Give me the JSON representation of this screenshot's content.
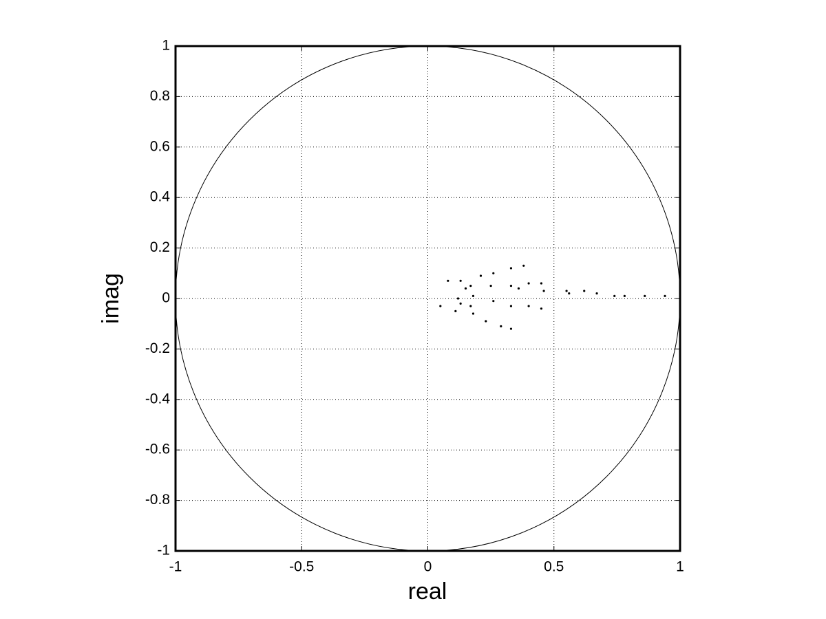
{
  "chart_data": {
    "type": "scatter",
    "x_label": "real",
    "y_label": "imag",
    "xlim": [
      -1,
      1
    ],
    "ylim": [
      -1,
      1
    ],
    "xticks": [
      -1,
      -0.5,
      0,
      0.5,
      1
    ],
    "yticks": [
      -1,
      -0.8,
      -0.6,
      -0.4,
      -0.2,
      0,
      0.2,
      0.4,
      0.6,
      0.8,
      1
    ],
    "grid": true,
    "series": [
      {
        "color": "#000000",
        "x": [
          0.05,
          0.08,
          0.11,
          0.12,
          0.13,
          0.13,
          0.15,
          0.17,
          0.17,
          0.18,
          0.18,
          0.21,
          0.23,
          0.25,
          0.26,
          0.26,
          0.29,
          0.33,
          0.33,
          0.33,
          0.33,
          0.36,
          0.38,
          0.4,
          0.4,
          0.45,
          0.45,
          0.46,
          0.55,
          0.56,
          0.62,
          0.67,
          0.74,
          0.78,
          0.86,
          0.94
        ],
        "values": [
          -0.03,
          0.07,
          -0.05,
          0.0,
          0.07,
          -0.02,
          0.04,
          0.05,
          -0.03,
          -0.06,
          0.01,
          0.09,
          -0.09,
          0.05,
          -0.01,
          0.1,
          -0.11,
          -0.12,
          0.05,
          0.12,
          -0.03,
          0.04,
          0.13,
          0.06,
          -0.03,
          0.06,
          -0.04,
          0.03,
          0.03,
          0.02,
          0.03,
          0.02,
          0.01,
          0.01,
          0.01,
          0.01
        ]
      }
    ]
  }
}
